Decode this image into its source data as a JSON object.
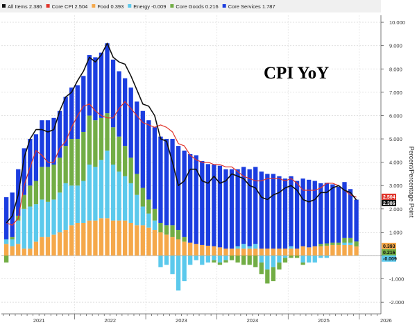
{
  "chart_data": {
    "type": "bar",
    "title": "CPI YoY",
    "ylabel": "Percent/Percentage Point",
    "ylim": [
      -2.5,
      10.3
    ],
    "y_ticks": [
      -2,
      -1,
      0,
      1,
      2,
      3,
      4,
      5,
      6,
      7,
      8,
      9,
      10
    ],
    "y_tick_labels": [
      "-2.000",
      "-1.000",
      "",
      "1.000",
      "2.000",
      "3.000",
      "4.000",
      "5.000",
      "6.000",
      "7.000",
      "8.000",
      "9.000",
      "10.000"
    ],
    "x_labels": [
      "2021",
      "2022",
      "2023",
      "2024",
      "2025",
      "2026"
    ],
    "x_label_month_index": [
      6,
      18,
      30,
      42,
      54,
      64.5
    ],
    "x_year_boundaries": [
      12,
      24,
      36,
      48,
      60
    ],
    "months": [
      "Jan 2021",
      "Feb 2021",
      "Mar 2021",
      "Apr 2021",
      "May 2021",
      "Jun 2021",
      "Jul 2021",
      "Aug 2021",
      "Sep 2021",
      "Oct 2021",
      "Nov 2021",
      "Dec 2021",
      "Jan 2022",
      "Feb 2022",
      "Mar 2022",
      "Apr 2022",
      "May 2022",
      "Jun 2022",
      "Jul 2022",
      "Aug 2022",
      "Sep 2022",
      "Oct 2022",
      "Nov 2022",
      "Dec 2022",
      "Jan 2023",
      "Feb 2023",
      "Mar 2023",
      "Apr 2023",
      "May 2023",
      "Jun 2023",
      "Jul 2023",
      "Aug 2023",
      "Sep 2023",
      "Oct 2023",
      "Nov 2023",
      "Dec 2023",
      "Jan 2024",
      "Feb 2024",
      "Mar 2024",
      "Apr 2024",
      "May 2024",
      "Jun 2024",
      "Jul 2024",
      "Aug 2024",
      "Sep 2024",
      "Oct 2024",
      "Nov 2024",
      "Dec 2024",
      "Jan 2025",
      "Feb 2025",
      "Mar 2025",
      "Apr 2025",
      "May 2025",
      "Jun 2025",
      "Jul 2025",
      "Aug 2025",
      "Sep 2025",
      "Oct 2025",
      "Nov 2025",
      "Dec 2025"
    ],
    "bar_series": [
      {
        "name": "Food",
        "color": "#f5a84a",
        "values": [
          0.5,
          0.4,
          0.5,
          0.3,
          0.3,
          0.6,
          0.8,
          0.8,
          0.9,
          1.0,
          1.1,
          1.3,
          1.4,
          1.4,
          1.5,
          1.5,
          1.6,
          1.6,
          1.5,
          1.5,
          1.5,
          1.4,
          1.3,
          1.3,
          1.2,
          1.1,
          1.0,
          0.9,
          0.8,
          0.7,
          0.6,
          0.55,
          0.5,
          0.45,
          0.42,
          0.4,
          0.35,
          0.3,
          0.3,
          0.3,
          0.3,
          0.3,
          0.3,
          0.3,
          0.3,
          0.3,
          0.3,
          0.3,
          0.3,
          0.3,
          0.4,
          0.35,
          0.4,
          0.4,
          0.42,
          0.45,
          0.45,
          0.45,
          0.45,
          0.393
        ]
      },
      {
        "name": "Energy",
        "color": "#5bc9ec",
        "values": [
          0.2,
          0.3,
          1.0,
          1.7,
          1.8,
          1.6,
          1.6,
          1.5,
          1.5,
          1.7,
          2.0,
          1.7,
          1.6,
          1.8,
          2.4,
          2.3,
          2.5,
          2.9,
          2.4,
          2.1,
          1.9,
          1.7,
          1.3,
          0.8,
          0.6,
          0.4,
          -0.5,
          -0.4,
          -0.8,
          -1.5,
          -1.1,
          -0.4,
          -0.2,
          -0.4,
          -0.3,
          -0.2,
          -0.3,
          -0.2,
          0.0,
          0.1,
          0.2,
          0.1,
          0.2,
          -0.3,
          -0.6,
          -0.5,
          -0.3,
          -0.1,
          0.1,
          0.0,
          -0.3,
          -0.3,
          -0.3,
          -0.1,
          -0.1,
          0.0,
          0.0,
          0.1,
          0.1,
          -0.009
        ]
      },
      {
        "name": "Core Goods",
        "color": "#72ad45",
        "values": [
          -0.3,
          0.1,
          0.2,
          0.6,
          0.9,
          1.0,
          1.4,
          1.5,
          1.5,
          1.5,
          1.6,
          2.0,
          2.0,
          2.1,
          2.1,
          2.0,
          1.8,
          1.6,
          1.6,
          1.5,
          1.3,
          1.1,
          0.9,
          0.8,
          0.6,
          0.5,
          0.4,
          0.4,
          0.5,
          0.4,
          0.2,
          0.0,
          0.0,
          0.0,
          0.0,
          -0.1,
          -0.1,
          -0.1,
          -0.2,
          -0.3,
          -0.4,
          -0.4,
          -0.5,
          -0.5,
          -0.6,
          -0.6,
          -0.3,
          -0.2,
          -0.1,
          -0.1,
          -0.1,
          0.0,
          0.0,
          0.1,
          0.1,
          0.1,
          0.1,
          0.2,
          0.2,
          0.216
        ]
      },
      {
        "name": "Core Services",
        "color": "#1b3de0",
        "values": [
          1.8,
          1.9,
          2.0,
          2.0,
          2.0,
          2.0,
          2.0,
          2.0,
          2.0,
          2.0,
          2.1,
          2.2,
          2.3,
          2.4,
          2.6,
          2.7,
          2.8,
          3.0,
          2.9,
          2.8,
          2.9,
          3.0,
          3.1,
          3.3,
          3.4,
          3.5,
          3.7,
          3.7,
          3.7,
          3.6,
          3.7,
          3.8,
          3.8,
          3.6,
          3.5,
          3.5,
          3.5,
          3.4,
          3.4,
          3.3,
          3.3,
          3.3,
          3.3,
          3.3,
          3.2,
          3.2,
          3.1,
          3.0,
          3.0,
          2.9,
          2.9,
          2.9,
          2.8,
          2.6,
          2.6,
          2.5,
          2.4,
          2.4,
          2.1,
          1.787
        ]
      }
    ],
    "line_series": [
      {
        "name": "All Items",
        "color": "#111111",
        "values": [
          1.4,
          1.7,
          2.6,
          4.2,
          5.0,
          5.4,
          5.4,
          5.3,
          5.4,
          6.2,
          6.8,
          7.0,
          7.5,
          7.9,
          8.5,
          8.3,
          8.6,
          9.1,
          8.5,
          8.3,
          8.2,
          7.7,
          7.1,
          6.5,
          6.4,
          6.0,
          5.0,
          4.9,
          4.0,
          3.0,
          3.2,
          3.7,
          3.7,
          3.2,
          3.1,
          3.4,
          3.1,
          3.2,
          3.5,
          3.4,
          3.3,
          3.0,
          2.9,
          2.5,
          2.4,
          2.6,
          2.7,
          2.9,
          3.0,
          2.8,
          2.4,
          2.3,
          2.4,
          2.7,
          2.7,
          2.9,
          3.0,
          2.8,
          2.7,
          2.386
        ]
      },
      {
        "name": "Core CPI",
        "color": "#e0342a",
        "values": [
          1.4,
          1.3,
          1.6,
          3.0,
          3.8,
          4.5,
          4.3,
          4.0,
          4.0,
          4.6,
          4.9,
          5.5,
          6.0,
          6.4,
          6.5,
          6.2,
          6.0,
          5.9,
          5.9,
          6.3,
          6.6,
          6.3,
          6.0,
          5.7,
          5.6,
          5.5,
          5.6,
          5.5,
          5.3,
          4.8,
          4.7,
          4.3,
          4.1,
          4.0,
          4.0,
          3.9,
          3.9,
          3.8,
          3.8,
          3.6,
          3.4,
          3.3,
          3.2,
          3.2,
          3.3,
          3.3,
          3.3,
          3.2,
          3.3,
          3.1,
          2.8,
          2.8,
          2.8,
          2.9,
          3.1,
          3.1,
          3.0,
          2.8,
          2.6,
          2.504
        ]
      }
    ],
    "legend": {
      "placement": "top",
      "entries": [
        {
          "label": "All Items",
          "value": "2.386",
          "color": "#111111"
        },
        {
          "label": "Core CPI",
          "value": "2.504",
          "color": "#e0342a"
        },
        {
          "label": "Food",
          "value": "0.393",
          "color": "#f5a84a"
        },
        {
          "label": "Energy",
          "value": "-0.009",
          "color": "#5bc9ec"
        },
        {
          "label": "Core Goods",
          "value": "0.216",
          "color": "#72ad45"
        },
        {
          "label": "Core Services",
          "value": "1.787",
          "color": "#1b3de0"
        }
      ]
    },
    "value_tags": [
      {
        "text": "2.386",
        "value": 2.386,
        "bg": "#111111",
        "fg": "#ffffff"
      },
      {
        "text": "2.504",
        "value": 2.504,
        "bg": "#e0342a",
        "fg": "#ffffff"
      },
      {
        "text": "0.216",
        "value": 0.216,
        "bg": "#72ad45",
        "fg": "#111111"
      },
      {
        "text": "0.393",
        "value": 0.393,
        "bg": "#f5a84a",
        "fg": "#111111"
      },
      {
        "text": "-0.009",
        "value": -0.009,
        "bg": "#5bc9ec",
        "fg": "#111111"
      }
    ],
    "grid": true
  }
}
